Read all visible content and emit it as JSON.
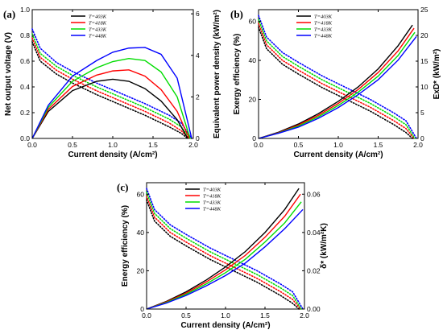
{
  "legend_entries": [
    "T=403K",
    "T=418K",
    "T=433K",
    "T=448K"
  ],
  "colors": {
    "T=403K": "#000000",
    "T=418K": "#ff0000",
    "T=433K": "#00dd00",
    "T=448K": "#0000ff"
  },
  "chart_data": [
    {
      "type": "line",
      "panel_label": "(a)",
      "xlabel": "Current density (A/cm²)",
      "ylabel_left": "Net output voltage (V)",
      "ylabel_right": "Equivalent power density (kW/m²)",
      "xlim": [
        0,
        2.0
      ],
      "xticks": [
        0.0,
        0.5,
        1.0,
        1.5,
        2.0
      ],
      "xticklabels": [
        "0.0",
        "0.5",
        "1.0",
        "1.5",
        "2.0"
      ],
      "ylim_left": [
        0,
        1.0
      ],
      "yticks_left": [
        0.0,
        0.2,
        0.4,
        0.6,
        0.8,
        1.0
      ],
      "yticklabels_left": [
        "0.0",
        "0.2",
        "0.4",
        "0.6",
        "0.8",
        "1.0"
      ],
      "ylim_right": [
        0,
        6.2
      ],
      "yticks_right": [
        0,
        2,
        4,
        6
      ],
      "yticklabels_right": [
        "0",
        "2",
        "4",
        "6"
      ],
      "legend_position": "top-right",
      "series": [
        {
          "name": "T=403K",
          "axis": "left",
          "style": "dotted",
          "x": [
            0.0,
            0.1,
            0.3,
            0.5,
            0.8,
            1.1,
            1.4,
            1.7,
            1.85,
            1.93
          ],
          "y": [
            0.75,
            0.6,
            0.5,
            0.43,
            0.34,
            0.26,
            0.18,
            0.09,
            0.04,
            0.0
          ]
        },
        {
          "name": "T=418K",
          "axis": "left",
          "style": "dotted",
          "x": [
            0.0,
            0.1,
            0.3,
            0.5,
            0.8,
            1.1,
            1.4,
            1.7,
            1.85,
            1.95
          ],
          "y": [
            0.78,
            0.63,
            0.53,
            0.46,
            0.37,
            0.29,
            0.21,
            0.12,
            0.06,
            0.0
          ]
        },
        {
          "name": "T=433K",
          "axis": "left",
          "style": "dotted",
          "x": [
            0.0,
            0.1,
            0.3,
            0.5,
            0.8,
            1.1,
            1.4,
            1.7,
            1.85,
            1.96
          ],
          "y": [
            0.81,
            0.66,
            0.56,
            0.49,
            0.4,
            0.32,
            0.24,
            0.15,
            0.09,
            0.0
          ]
        },
        {
          "name": "T=448K",
          "axis": "left",
          "style": "dotted",
          "x": [
            0.0,
            0.1,
            0.3,
            0.5,
            0.8,
            1.1,
            1.4,
            1.7,
            1.85,
            1.98
          ],
          "y": [
            0.85,
            0.7,
            0.59,
            0.52,
            0.43,
            0.35,
            0.27,
            0.18,
            0.12,
            0.0
          ]
        },
        {
          "name": "T=403K",
          "axis": "right",
          "style": "solid",
          "x": [
            0.0,
            0.2,
            0.5,
            0.8,
            1.0,
            1.2,
            1.4,
            1.6,
            1.8,
            1.93
          ],
          "y": [
            0.0,
            1.3,
            2.3,
            2.75,
            2.85,
            2.75,
            2.4,
            1.8,
            0.9,
            0.0
          ]
        },
        {
          "name": "T=418K",
          "axis": "right",
          "style": "solid",
          "x": [
            0.0,
            0.2,
            0.5,
            0.8,
            1.0,
            1.2,
            1.4,
            1.6,
            1.8,
            1.95
          ],
          "y": [
            0.0,
            1.4,
            2.5,
            3.05,
            3.25,
            3.3,
            3.0,
            2.35,
            1.3,
            0.0
          ]
        },
        {
          "name": "T=433K",
          "axis": "right",
          "style": "solid",
          "x": [
            0.0,
            0.2,
            0.5,
            0.8,
            1.0,
            1.2,
            1.4,
            1.6,
            1.8,
            1.96
          ],
          "y": [
            0.0,
            1.5,
            2.75,
            3.4,
            3.7,
            3.85,
            3.75,
            3.2,
            2.0,
            0.0
          ]
        },
        {
          "name": "T=448K",
          "axis": "right",
          "style": "solid",
          "x": [
            0.0,
            0.2,
            0.5,
            0.8,
            1.0,
            1.2,
            1.4,
            1.6,
            1.8,
            1.98
          ],
          "y": [
            0.0,
            1.6,
            3.0,
            3.75,
            4.15,
            4.35,
            4.38,
            4.05,
            2.9,
            0.0
          ]
        }
      ]
    },
    {
      "type": "line",
      "panel_label": "(b)",
      "xlabel": "Current density (A/cm²)",
      "ylabel_left": "Exergy efficiency (%)",
      "ylabel_right": "ExD* (kW/m²)",
      "xlim": [
        0,
        2.0
      ],
      "xticks": [
        0.0,
        0.5,
        1.0,
        1.5,
        2.0
      ],
      "xticklabels": [
        "0.0",
        "0.5",
        "1.0",
        "1.5",
        "2.0"
      ],
      "ylim_left": [
        0,
        66
      ],
      "yticks_left": [
        0,
        20,
        40,
        60
      ],
      "yticklabels_left": [
        "0",
        "20",
        "40",
        "60"
      ],
      "ylim_right": [
        0,
        25
      ],
      "yticks_right": [
        0,
        5,
        10,
        15,
        20,
        25
      ],
      "yticklabels_right": [
        "0",
        "5",
        "10",
        "15",
        "20",
        "25"
      ],
      "legend_position": "top-right",
      "series": [
        {
          "name": "T=403K",
          "axis": "left",
          "style": "dotted",
          "x": [
            0.0,
            0.1,
            0.3,
            0.5,
            0.8,
            1.1,
            1.4,
            1.7,
            1.85,
            1.93
          ],
          "y": [
            57,
            46,
            38,
            33,
            26,
            20,
            14,
            7,
            3,
            0
          ]
        },
        {
          "name": "T=418K",
          "axis": "left",
          "style": "dotted",
          "x": [
            0.0,
            0.1,
            0.3,
            0.5,
            0.8,
            1.1,
            1.4,
            1.7,
            1.85,
            1.95
          ],
          "y": [
            59,
            48,
            40,
            35,
            28,
            22,
            16,
            9,
            5,
            0
          ]
        },
        {
          "name": "T=433K",
          "axis": "left",
          "style": "dotted",
          "x": [
            0.0,
            0.1,
            0.3,
            0.5,
            0.8,
            1.1,
            1.4,
            1.7,
            1.85,
            1.96
          ],
          "y": [
            61,
            50,
            42,
            37,
            30,
            24,
            18,
            11,
            7,
            0
          ]
        },
        {
          "name": "T=448K",
          "axis": "left",
          "style": "dotted",
          "x": [
            0.0,
            0.1,
            0.3,
            0.5,
            0.8,
            1.1,
            1.4,
            1.7,
            1.85,
            1.98
          ],
          "y": [
            63,
            52,
            44,
            39,
            32,
            26,
            20,
            13,
            9,
            0
          ]
        },
        {
          "name": "T=403K",
          "axis": "right",
          "style": "solid",
          "x": [
            0.0,
            0.25,
            0.5,
            0.75,
            1.0,
            1.25,
            1.5,
            1.75,
            1.93
          ],
          "y": [
            0.0,
            1.2,
            2.8,
            4.8,
            7.2,
            10.0,
            13.5,
            18.0,
            22.0
          ]
        },
        {
          "name": "T=418K",
          "axis": "right",
          "style": "solid",
          "x": [
            0.0,
            0.25,
            0.5,
            0.75,
            1.0,
            1.25,
            1.5,
            1.75,
            1.95
          ],
          "y": [
            0.0,
            1.1,
            2.6,
            4.5,
            6.8,
            9.5,
            12.8,
            17.0,
            21.4
          ]
        },
        {
          "name": "T=433K",
          "axis": "right",
          "style": "solid",
          "x": [
            0.0,
            0.25,
            0.5,
            0.75,
            1.0,
            1.25,
            1.5,
            1.75,
            1.96
          ],
          "y": [
            0.0,
            1.05,
            2.4,
            4.2,
            6.4,
            9.0,
            12.1,
            16.1,
            20.6
          ]
        },
        {
          "name": "T=448K",
          "axis": "right",
          "style": "solid",
          "x": [
            0.0,
            0.25,
            0.5,
            0.75,
            1.0,
            1.25,
            1.5,
            1.75,
            1.98
          ],
          "y": [
            0.0,
            1.0,
            2.2,
            3.9,
            6.0,
            8.5,
            11.4,
            15.2,
            19.8
          ]
        }
      ]
    },
    {
      "type": "line",
      "panel_label": "(c)",
      "xlabel": "Current density (A/cm²)",
      "ylabel_left": "Energy efficiency (%)",
      "ylabel_right": "δ* (kW/m²K)",
      "xlim": [
        0,
        2.0
      ],
      "xticks": [
        0.0,
        0.5,
        1.0,
        1.5,
        2.0
      ],
      "xticklabels": [
        "0.0",
        "0.5",
        "1.0",
        "1.5",
        "2.0"
      ],
      "ylim_left": [
        0,
        66
      ],
      "yticks_left": [
        0,
        20,
        40,
        60
      ],
      "yticklabels_left": [
        "0",
        "20",
        "40",
        "60"
      ],
      "ylim_right": [
        0,
        0.066
      ],
      "yticks_right": [
        0.0,
        0.02,
        0.04,
        0.06
      ],
      "yticklabels_right": [
        "0.00",
        "0.02",
        "0.04",
        "0.06"
      ],
      "legend_position": "top-left",
      "series": [
        {
          "name": "T=403K",
          "axis": "left",
          "style": "dotted",
          "x": [
            0.0,
            0.1,
            0.3,
            0.5,
            0.8,
            1.1,
            1.4,
            1.7,
            1.85,
            1.93
          ],
          "y": [
            57,
            46,
            38,
            33,
            26,
            20,
            14,
            7,
            3,
            0
          ]
        },
        {
          "name": "T=418K",
          "axis": "left",
          "style": "dotted",
          "x": [
            0.0,
            0.1,
            0.3,
            0.5,
            0.8,
            1.1,
            1.4,
            1.7,
            1.85,
            1.95
          ],
          "y": [
            59,
            48,
            40,
            35,
            28,
            22,
            16,
            9,
            5,
            0
          ]
        },
        {
          "name": "T=433K",
          "axis": "left",
          "style": "dotted",
          "x": [
            0.0,
            0.1,
            0.3,
            0.5,
            0.8,
            1.1,
            1.4,
            1.7,
            1.85,
            1.96
          ],
          "y": [
            61,
            50,
            42,
            37,
            30,
            24,
            18,
            11,
            7,
            0
          ]
        },
        {
          "name": "T=448K",
          "axis": "left",
          "style": "dotted",
          "x": [
            0.0,
            0.1,
            0.3,
            0.5,
            0.8,
            1.1,
            1.4,
            1.7,
            1.85,
            1.98
          ],
          "y": [
            63,
            52,
            44,
            39,
            32,
            26,
            20,
            13,
            9,
            0
          ]
        },
        {
          "name": "T=403K",
          "axis": "right",
          "style": "solid",
          "x": [
            0.0,
            0.25,
            0.5,
            0.75,
            1.0,
            1.25,
            1.5,
            1.75,
            1.93
          ],
          "y": [
            0.0,
            0.004,
            0.009,
            0.015,
            0.022,
            0.03,
            0.04,
            0.052,
            0.063
          ]
        },
        {
          "name": "T=418K",
          "axis": "right",
          "style": "solid",
          "x": [
            0.0,
            0.25,
            0.5,
            0.75,
            1.0,
            1.25,
            1.5,
            1.75,
            1.95
          ],
          "y": [
            0.0,
            0.0037,
            0.0083,
            0.014,
            0.0205,
            0.028,
            0.0375,
            0.0485,
            0.06
          ]
        },
        {
          "name": "T=433K",
          "axis": "right",
          "style": "solid",
          "x": [
            0.0,
            0.25,
            0.5,
            0.75,
            1.0,
            1.25,
            1.5,
            1.75,
            1.96
          ],
          "y": [
            0.0,
            0.0034,
            0.0077,
            0.013,
            0.019,
            0.026,
            0.035,
            0.045,
            0.056
          ]
        },
        {
          "name": "T=448K",
          "axis": "right",
          "style": "solid",
          "x": [
            0.0,
            0.25,
            0.5,
            0.75,
            1.0,
            1.25,
            1.5,
            1.75,
            1.98
          ],
          "y": [
            0.0,
            0.0031,
            0.0071,
            0.012,
            0.0175,
            0.024,
            0.0325,
            0.042,
            0.052
          ]
        }
      ]
    }
  ]
}
